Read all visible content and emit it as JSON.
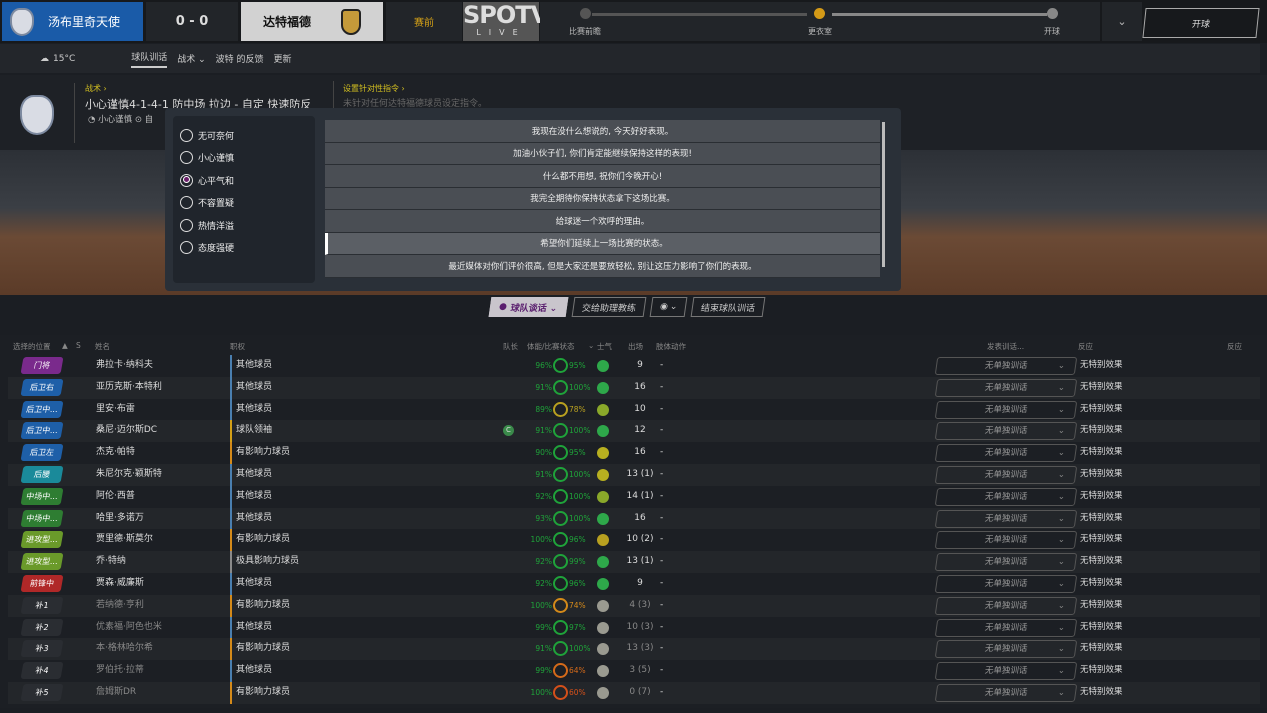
{
  "header": {
    "home_team": "汤布里奇天使",
    "score": "0 - 0",
    "away_team": "达特福德",
    "phase": "赛前",
    "broadcaster": "SPOTV",
    "broadcaster_sub": "LIVE",
    "timeline": [
      "比赛前瞻",
      "更衣室",
      "开球"
    ],
    "timeline_current": 1,
    "kickoff_button": "开球",
    "menu_icon": "chevron-down"
  },
  "subnav": {
    "weather": "15°C",
    "tabs": [
      "球队训话",
      "战术 ⌄",
      "波特 的反馈",
      "更新"
    ],
    "active_tab": 0
  },
  "tactics": {
    "label": "战术  ›",
    "formation": "小心谨慎4-1-4-1 防中场 拉边 - 自定 快速防反",
    "mentality": "小心谨慎",
    "extra": "自",
    "instructions_label": "设置针对性指令 ›",
    "instructions_text": "未针对任何达特福德球员设定指令。"
  },
  "popup": {
    "tones": [
      "无可奈何",
      "小心谨慎",
      "心平气和",
      "不容置疑",
      "热情洋溢",
      "态度强硬"
    ],
    "selected_tone": 2,
    "options": [
      "我现在没什么想说的, 今天好好表现。",
      "加油小伙子们, 你们肯定能继续保持这样的表现!",
      "什么都不用想, 祝你们今晚开心!",
      "我完全期待你保持状态拿下这场比赛。",
      "给球迷一个欢呼的理由。",
      "希望你们延续上一场比赛的状态。",
      "最近媒体对你们评价很高, 但是大家还是要放轻松, 别让这压力影响了你们的表现。"
    ],
    "selected_option": 5
  },
  "actions": {
    "team_talk": "球队谈话 ⌄",
    "delegate": "交给助理教练",
    "person": "⌄",
    "end": "结束球队训话"
  },
  "table": {
    "headers": [
      "选择的位置",
      "▲",
      "S",
      "姓名",
      "职权",
      "队长",
      "体能/比赛状态",
      "⌄",
      "士气",
      "出场",
      "肢体动作",
      "发表训话...",
      "反应",
      "反应"
    ],
    "dropdown_default": "无单独训话",
    "reaction_default": "无特别效果",
    "colors": {
      "gk": "#7a2a8c",
      "def": "#1e5fa8",
      "dm": "#1a8a9a",
      "mid": "#2e7d32",
      "am": "#6a9a2a",
      "st": "#b02828",
      "sub": "#2a2d32",
      "other": "#4a7fb0",
      "leader": "#d4a017",
      "influential": "#d48a1a",
      "highly": "#8a8a8a"
    },
    "rows": [
      {
        "pos": "门将",
        "cat": "gk",
        "name": "弗拉卡·纳科夫",
        "role": "其他球员",
        "rt": "other",
        "cap": "",
        "fit": "96%",
        "form": "95%",
        "fc": "#1fa33a",
        "mor": "#2ea84a",
        "apps": "9",
        "body": "-"
      },
      {
        "pos": "后卫右",
        "cat": "def",
        "name": "亚历克斯·本特利",
        "role": "其他球员",
        "rt": "other",
        "cap": "",
        "fit": "91%",
        "form": "100%",
        "fc": "#1fa33a",
        "mor": "#2ea84a",
        "apps": "16",
        "body": "-"
      },
      {
        "pos": "后卫中...",
        "cat": "def",
        "name": "里安·布雷",
        "role": "其他球员",
        "rt": "other",
        "cap": "",
        "fit": "89%",
        "form": "78%",
        "fc": "#b8a020",
        "mor": "#8aa82a",
        "apps": "10",
        "body": "-"
      },
      {
        "pos": "后卫中...",
        "cat": "def",
        "name": "桑尼·迈尔斯DC",
        "role": "球队领袖",
        "rt": "leader",
        "cap": "C",
        "fit": "91%",
        "form": "100%",
        "fc": "#1fa33a",
        "mor": "#2ea84a",
        "apps": "12",
        "body": "-"
      },
      {
        "pos": "后卫左",
        "cat": "def",
        "name": "杰克·帕特",
        "role": "有影响力球员",
        "rt": "influential",
        "cap": "",
        "fit": "90%",
        "form": "95%",
        "fc": "#1fa33a",
        "mor": "#b8b020",
        "apps": "16",
        "body": "-"
      },
      {
        "pos": "后腰",
        "cat": "dm",
        "name": "朱尼尔克·颖斯特",
        "role": "其他球员",
        "rt": "other",
        "cap": "",
        "fit": "91%",
        "form": "100%",
        "fc": "#1fa33a",
        "mor": "#b8b020",
        "apps": "13 (1)",
        "body": "-"
      },
      {
        "pos": "中场中...",
        "cat": "mid",
        "name": "阿伦·西普",
        "role": "其他球员",
        "rt": "other",
        "cap": "",
        "fit": "92%",
        "form": "100%",
        "fc": "#1fa33a",
        "mor": "#8aa82a",
        "apps": "14 (1)",
        "body": "-"
      },
      {
        "pos": "中场中...",
        "cat": "mid",
        "name": "哈里·多诺万",
        "role": "其他球员",
        "rt": "other",
        "cap": "",
        "fit": "93%",
        "form": "100%",
        "fc": "#1fa33a",
        "mor": "#2ea84a",
        "apps": "16",
        "body": "-"
      },
      {
        "pos": "进攻型...",
        "cat": "am",
        "name": "贾里德·斯莫尔",
        "role": "有影响力球员",
        "rt": "influential",
        "cap": "",
        "fit": "100%",
        "form": "96%",
        "fc": "#1fa33a",
        "mor": "#b8a020",
        "apps": "10 (2)",
        "body": "-"
      },
      {
        "pos": "进攻型...",
        "cat": "am",
        "name": "乔·特纳",
        "role": "极具影响力球员",
        "rt": "highly",
        "cap": "",
        "fit": "92%",
        "form": "99%",
        "fc": "#1fa33a",
        "mor": "#2ea84a",
        "apps": "13 (1)",
        "body": "-"
      },
      {
        "pos": "前锋中",
        "cat": "st",
        "name": "贾森·威廉斯",
        "role": "其他球员",
        "rt": "other",
        "cap": "",
        "fit": "92%",
        "form": "96%",
        "fc": "#1fa33a",
        "mor": "#2ea84a",
        "apps": "9",
        "body": "-"
      },
      {
        "pos": "补1",
        "cat": "sub",
        "name": "若纳德·亨利",
        "role": "有影响力球员",
        "rt": "influential",
        "cap": "",
        "fit": "100%",
        "form": "74%",
        "fc": "#d48a1a",
        "mor": "#9a9a90",
        "apps": "4 (3)",
        "body": "-"
      },
      {
        "pos": "补2",
        "cat": "sub",
        "name": "优素福·阿色也米",
        "role": "其他球员",
        "rt": "other",
        "cap": "",
        "fit": "99%",
        "form": "97%",
        "fc": "#1fa33a",
        "mor": "#9a9a90",
        "apps": "10 (3)",
        "body": "-"
      },
      {
        "pos": "补3",
        "cat": "sub",
        "name": "本·格林哈尔希",
        "role": "有影响力球员",
        "rt": "influential",
        "cap": "",
        "fit": "91%",
        "form": "100%",
        "fc": "#1fa33a",
        "mor": "#9a9a90",
        "apps": "13 (3)",
        "body": "-"
      },
      {
        "pos": "补4",
        "cat": "sub",
        "name": "罗伯托·拉蒂",
        "role": "其他球员",
        "rt": "other",
        "cap": "",
        "fit": "99%",
        "form": "64%",
        "fc": "#d46a1a",
        "mor": "#9a9a90",
        "apps": "3 (5)",
        "body": "-"
      },
      {
        "pos": "补5",
        "cat": "sub",
        "name": "詹姆斯DR",
        "role": "有影响力球员",
        "rt": "influential",
        "cap": "",
        "fit": "100%",
        "form": "60%",
        "fc": "#d4501a",
        "mor": "#9a9a90",
        "apps": "0 (7)",
        "body": "-"
      }
    ]
  }
}
